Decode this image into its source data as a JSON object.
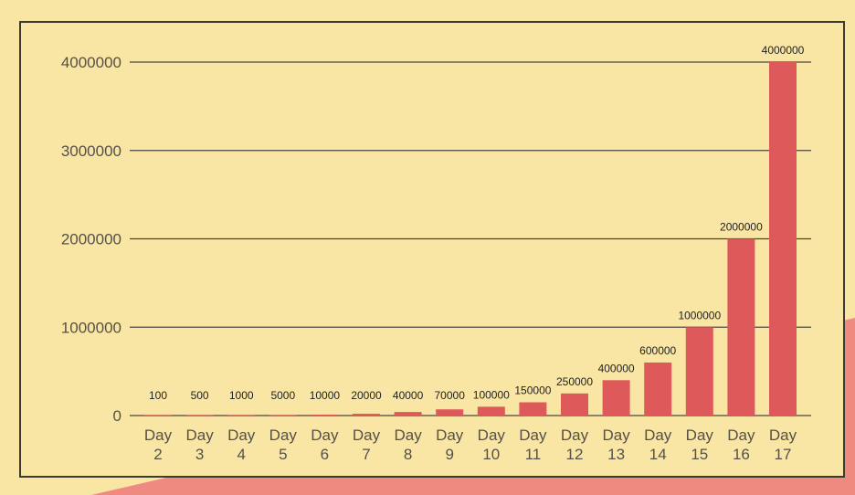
{
  "colors": {
    "background": "#f9e6a4",
    "bar": "#de5a5a",
    "accent_wedge": "#ef8a80",
    "grid": "#4a4740"
  },
  "chart_data": {
    "type": "bar",
    "categories": [
      [
        "Day",
        "2"
      ],
      [
        "Day",
        "3"
      ],
      [
        "Day",
        "4"
      ],
      [
        "Day",
        "5"
      ],
      [
        "Day",
        "6"
      ],
      [
        "Day",
        "7"
      ],
      [
        "Day",
        "8"
      ],
      [
        "Day",
        "9"
      ],
      [
        "Day",
        "10"
      ],
      [
        "Day",
        "11"
      ],
      [
        "Day",
        "12"
      ],
      [
        "Day",
        "13"
      ],
      [
        "Day",
        "14"
      ],
      [
        "Day",
        "15"
      ],
      [
        "Day",
        "16"
      ],
      [
        "Day",
        "17"
      ]
    ],
    "values": [
      100,
      500,
      1000,
      5000,
      10000,
      20000,
      40000,
      70000,
      100000,
      150000,
      250000,
      400000,
      600000,
      1000000,
      2000000,
      4000000
    ],
    "data_labels": [
      "100",
      "500",
      "1000",
      "5000",
      "10000",
      "20000",
      "40000",
      "70000",
      "100000",
      "150000",
      "250000",
      "400000",
      "600000",
      "1000000",
      "2000000",
      "4000000"
    ],
    "y_ticks": [
      0,
      1000000,
      2000000,
      3000000,
      4000000
    ],
    "y_tick_labels": [
      "0",
      "1000000",
      "2000000",
      "3000000",
      "4000000"
    ],
    "ylim": [
      0,
      4000000
    ],
    "grid": true,
    "legend": "none",
    "title": "",
    "xlabel": "",
    "ylabel": ""
  }
}
